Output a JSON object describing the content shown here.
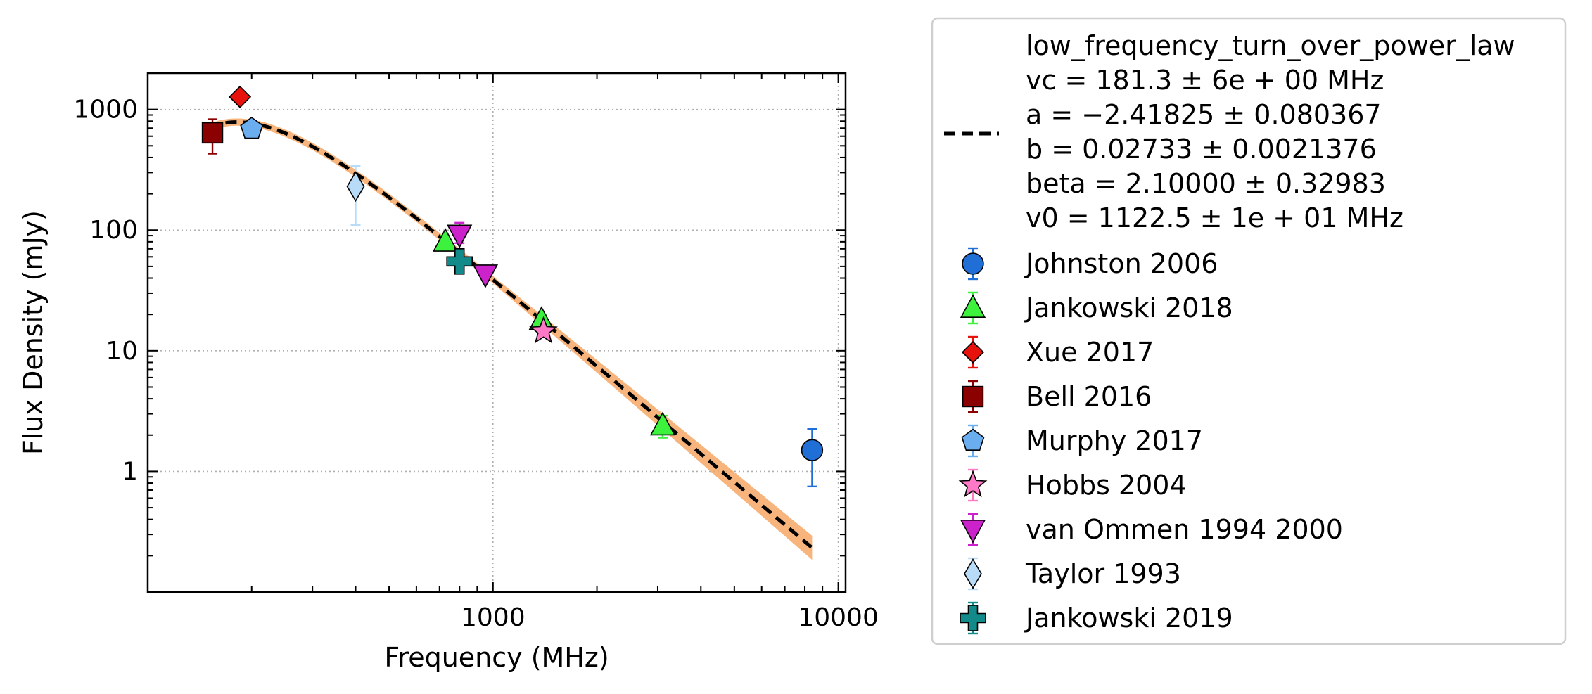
{
  "chart_data": {
    "type": "scatter",
    "title": "",
    "xlabel": "Frequency (MHz)",
    "ylabel": "Flux Density (mJy)",
    "x_scale": "log",
    "y_scale": "log",
    "xlim": [
      100,
      10500
    ],
    "ylim": [
      0.1,
      2000
    ],
    "grid": true,
    "legend_position": "outside right",
    "x_ticks": [
      {
        "value": 1000,
        "label": "1000"
      },
      {
        "value": 10000,
        "label": "10000"
      }
    ],
    "y_ticks": [
      {
        "value": 1,
        "label": "1"
      },
      {
        "value": 10,
        "label": "10"
      },
      {
        "value": 100,
        "label": "100"
      },
      {
        "value": 1000,
        "label": "1000"
      }
    ],
    "fit": {
      "name": "low_frequency_turn_over_power_law",
      "parameter_lines": [
        "vc = 181.3 ± 6e + 00 MHz",
        "a = −2.41825 ± 0.080367",
        "b = 0.02733 ± 0.0021376",
        "beta = 2.10000 ± 0.32983",
        "v0 = 1122.5 ± 1e + 01 MHz"
      ],
      "params": {
        "vc": 181.3,
        "a": -2.41825,
        "b": 0.02733,
        "beta": 2.1,
        "v0": 1122.5
      },
      "x_range": [
        150,
        8400
      ],
      "line_color": "#000000",
      "band_color": "#f5a35c"
    },
    "series": [
      {
        "name": "Johnston 2006",
        "marker": "circle",
        "color": "#1f6fd6",
        "points": [
          {
            "x": 8400,
            "y": 1.5,
            "y_lo": 0.75,
            "y_hi": 2.25
          }
        ]
      },
      {
        "name": "Jankowski 2018",
        "marker": "triangle-up",
        "color": "#3df23d",
        "points": [
          {
            "x": 728,
            "y": 80,
            "y_lo": 70,
            "y_hi": 90
          },
          {
            "x": 1382,
            "y": 18,
            "y_lo": 16,
            "y_hi": 20
          },
          {
            "x": 3100,
            "y": 2.4,
            "y_lo": 1.9,
            "y_hi": 2.9
          }
        ]
      },
      {
        "name": "Xue 2017",
        "marker": "diamond",
        "color": "#e8120c",
        "points": [
          {
            "x": 185,
            "y": 1270,
            "y_lo": 1270,
            "y_hi": 1270
          }
        ]
      },
      {
        "name": "Bell 2016",
        "marker": "square",
        "color": "#8b0000",
        "points": [
          {
            "x": 154,
            "y": 640,
            "y_lo": 430,
            "y_hi": 830
          }
        ]
      },
      {
        "name": "Murphy 2017",
        "marker": "pentagon",
        "color": "#6aaef0",
        "points": [
          {
            "x": 200,
            "y": 690,
            "y_lo": 620,
            "y_hi": 760
          }
        ]
      },
      {
        "name": "Hobbs 2004",
        "marker": "star",
        "color": "#ff79c6",
        "points": [
          {
            "x": 1400,
            "y": 14.5,
            "y_lo": 13,
            "y_hi": 16
          }
        ]
      },
      {
        "name": "van Ommen 1994 2000",
        "marker": "triangle-down",
        "color": "#cc22cc",
        "points": [
          {
            "x": 800,
            "y": 92,
            "y_lo": 78,
            "y_hi": 115
          },
          {
            "x": 950,
            "y": 43,
            "y_lo": 40,
            "y_hi": 46
          }
        ]
      },
      {
        "name": "Taylor 1993",
        "marker": "thin-diamond",
        "color": "#b8dcf8",
        "points": [
          {
            "x": 400,
            "y": 230,
            "y_lo": 110,
            "y_hi": 340
          }
        ]
      },
      {
        "name": "Jankowski 2019",
        "marker": "plus",
        "color": "#138a8a",
        "points": [
          {
            "x": 800,
            "y": 55,
            "y_lo": 48,
            "y_hi": 62
          }
        ]
      }
    ]
  }
}
